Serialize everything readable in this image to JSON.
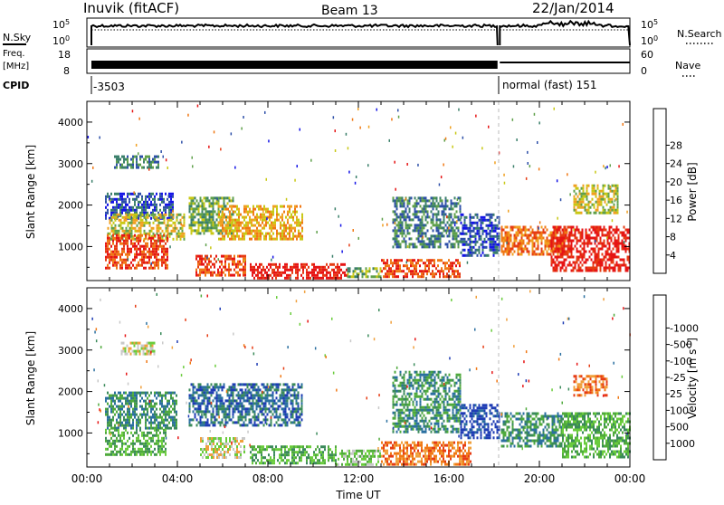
{
  "header": {
    "station": "Inuvik (fitACF)",
    "beam": "Beam 13",
    "date": "22/Jan/2014"
  },
  "strip": {
    "nsky_label": "N.Sky",
    "nsearch_label": "N.Search",
    "noise_ticks_left": [
      "10^5",
      "10^0"
    ],
    "noise_ticks_right": [
      "10^5",
      "10^0"
    ],
    "freq_label": "Freq.",
    "freq_unit": "[MHz]",
    "freq_ticks": [
      "18",
      "8"
    ],
    "nave_label": "Nave",
    "nave_ticks": [
      "60",
      "0"
    ],
    "cpid_label": "CPID",
    "cpid_segments": [
      {
        "start_hour": 0.2,
        "label": "-3503"
      },
      {
        "start_hour": 18.2,
        "label": "normal (fast) 151"
      }
    ]
  },
  "chart_data": [
    {
      "type": "heatmap",
      "panel": "power",
      "ylabel": "Slant Range [km]",
      "yticks": [
        1000,
        2000,
        3000,
        4000
      ],
      "ylim": [
        180,
        4500
      ],
      "xlim": [
        0,
        24
      ],
      "colorbar": {
        "label": "Power [dB]",
        "ticks": [
          "4",
          "8",
          "12",
          "16",
          "20",
          "24",
          "28"
        ],
        "colors": [
          "#1414e6",
          "#2d4fa8",
          "#3a7f6a",
          "#5fa04a",
          "#c8c814",
          "#f0a020",
          "#f07814",
          "#e63c14",
          "#e61414"
        ]
      },
      "regions": [
        {
          "x": [
            0.8,
            3.8
          ],
          "y": [
            1700,
            2300
          ],
          "level": 1
        },
        {
          "x": [
            1.2,
            3.2
          ],
          "y": [
            2900,
            3200
          ],
          "level": 2
        },
        {
          "x": [
            0.9,
            4.3
          ],
          "y": [
            1200,
            1800
          ],
          "level": 4
        },
        {
          "x": [
            0.8,
            3.6
          ],
          "y": [
            500,
            1300
          ],
          "level": 7
        },
        {
          "x": [
            4.5,
            6.5
          ],
          "y": [
            1300,
            2200
          ],
          "level": 3
        },
        {
          "x": [
            5.8,
            9.5
          ],
          "y": [
            1200,
            2000
          ],
          "level": 5
        },
        {
          "x": [
            4.8,
            7.0
          ],
          "y": [
            300,
            800
          ],
          "level": 7
        },
        {
          "x": [
            7.2,
            11.5
          ],
          "y": [
            250,
            600
          ],
          "level": 8
        },
        {
          "x": [
            11.5,
            13.0
          ],
          "y": [
            250,
            500
          ],
          "level": 3
        },
        {
          "x": [
            13.0,
            16.5
          ],
          "y": [
            250,
            700
          ],
          "level": 7
        },
        {
          "x": [
            13.5,
            16.5
          ],
          "y": [
            1000,
            2200
          ],
          "level": 2
        },
        {
          "x": [
            16.5,
            18.2
          ],
          "y": [
            800,
            1800
          ],
          "level": 1
        },
        {
          "x": [
            18.3,
            21.3
          ],
          "y": [
            800,
            1500
          ],
          "level": 6
        },
        {
          "x": [
            20.5,
            24.0
          ],
          "y": [
            400,
            1500
          ],
          "level": 8
        },
        {
          "x": [
            21.5,
            23.5
          ],
          "y": [
            1800,
            2500
          ],
          "level": 4
        }
      ]
    },
    {
      "type": "heatmap",
      "panel": "velocity",
      "ylabel": "Slant Range [km]",
      "xlabel": "Time UT",
      "yticks": [
        1000,
        2000,
        3000,
        4000
      ],
      "ylim": [
        180,
        4500
      ],
      "xlim": [
        0,
        24
      ],
      "xticks": [
        "00:00",
        "04:00",
        "08:00",
        "12:00",
        "16:00",
        "20:00",
        "00:00"
      ],
      "colorbar": {
        "label": "Velocity [m s^-1]",
        "ticks": [
          "1000",
          "500",
          "100",
          "25",
          "-25",
          "-100",
          "-500",
          "-1000"
        ],
        "colors": [
          "#1e3cb4",
          "#2a6fa0",
          "#3a8a5a",
          "#4faa3c",
          "#6acc3c",
          "#c8c8c8",
          "#f0a03c",
          "#f07814",
          "#e63c14",
          "#e61414"
        ]
      },
      "regions": [
        {
          "x": [
            0.8,
            4.0
          ],
          "y": [
            1100,
            2000
          ],
          "level": 2
        },
        {
          "x": [
            0.8,
            3.5
          ],
          "y": [
            500,
            1100
          ],
          "level": 3
        },
        {
          "x": [
            1.5,
            3.0
          ],
          "y": [
            2900,
            3200
          ],
          "level": 5
        },
        {
          "x": [
            4.5,
            9.5
          ],
          "y": [
            1200,
            2200
          ],
          "level": 1
        },
        {
          "x": [
            5.0,
            7.0
          ],
          "y": [
            400,
            900
          ],
          "level": 5
        },
        {
          "x": [
            7.2,
            11.0
          ],
          "y": [
            250,
            700
          ],
          "level": 3
        },
        {
          "x": [
            11.0,
            13.0
          ],
          "y": [
            250,
            600
          ],
          "level": 4
        },
        {
          "x": [
            13.0,
            17.0
          ],
          "y": [
            250,
            800
          ],
          "level": 7
        },
        {
          "x": [
            13.5,
            16.5
          ],
          "y": [
            1000,
            2500
          ],
          "level": 2
        },
        {
          "x": [
            16.5,
            18.2
          ],
          "y": [
            900,
            1700
          ],
          "level": 0
        },
        {
          "x": [
            18.3,
            21.0
          ],
          "y": [
            700,
            1500
          ],
          "level": 2
        },
        {
          "x": [
            21.0,
            24.0
          ],
          "y": [
            400,
            1500
          ],
          "level": 3
        },
        {
          "x": [
            21.5,
            23.0
          ],
          "y": [
            1900,
            2400
          ],
          "level": 7
        }
      ]
    }
  ]
}
